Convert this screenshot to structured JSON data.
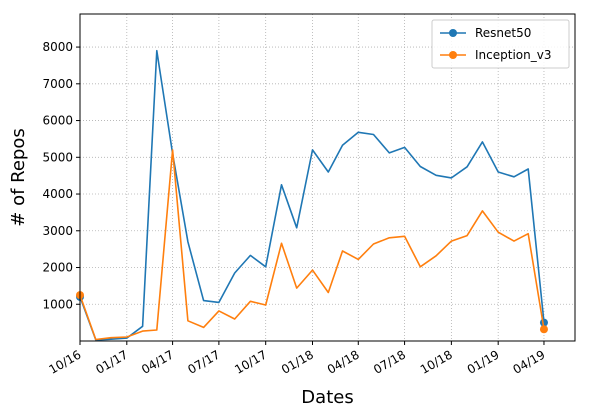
{
  "chart_data": {
    "type": "line",
    "title": "",
    "xlabel": "Dates",
    "ylabel": "# of Repos",
    "x_ticks": [
      "10/16",
      "01/17",
      "04/17",
      "07/17",
      "10/17",
      "01/18",
      "04/18",
      "07/18",
      "10/18",
      "01/19",
      "04/19"
    ],
    "y_ticks": [
      "1000",
      "2000",
      "3000",
      "4000",
      "5000",
      "6000",
      "7000",
      "8000"
    ],
    "ylim": [
      0,
      8900
    ],
    "xlim": [
      "2016-10-01",
      "2019-06-01"
    ],
    "grid": true,
    "legend_position": "top-right",
    "series": [
      {
        "name": "Resnet50",
        "color": "#1f77b4",
        "x": [
          "2016-10-01",
          "2016-11-01",
          "2016-12-01",
          "2017-01-01",
          "2017-02-01",
          "2017-03-01",
          "2017-04-01",
          "2017-05-01",
          "2017-06-01",
          "2017-07-01",
          "2017-08-01",
          "2017-09-01",
          "2017-10-01",
          "2017-11-01",
          "2017-12-01",
          "2018-01-01",
          "2018-02-01",
          "2018-03-01",
          "2018-04-01",
          "2018-05-01",
          "2018-06-01",
          "2018-07-01",
          "2018-08-01",
          "2018-09-01",
          "2018-10-01",
          "2018-11-01",
          "2018-12-01",
          "2019-01-01",
          "2019-02-01",
          "2019-03-01",
          "2019-04-01"
        ],
        "y": [
          1200,
          30,
          50,
          80,
          400,
          7900,
          5100,
          2700,
          1100,
          1050,
          1850,
          2330,
          2020,
          4250,
          3080,
          5200,
          4600,
          5330,
          5680,
          5620,
          5120,
          5270,
          4750,
          4510,
          4440,
          4740,
          5420,
          4600,
          4470,
          4680,
          500
        ]
      },
      {
        "name": "Inception_v3",
        "color": "#ff7f0e",
        "x": [
          "2016-10-01",
          "2016-11-01",
          "2016-12-01",
          "2017-01-01",
          "2017-02-01",
          "2017-03-01",
          "2017-04-01",
          "2017-05-01",
          "2017-06-01",
          "2017-07-01",
          "2017-08-01",
          "2017-09-01",
          "2017-10-01",
          "2017-11-01",
          "2017-12-01",
          "2018-01-01",
          "2018-02-01",
          "2018-03-01",
          "2018-04-01",
          "2018-05-01",
          "2018-06-01",
          "2018-07-01",
          "2018-08-01",
          "2018-09-01",
          "2018-10-01",
          "2018-11-01",
          "2018-12-01",
          "2019-01-01",
          "2019-02-01",
          "2019-03-01",
          "2019-04-01"
        ],
        "y": [
          1250,
          40,
          90,
          110,
          270,
          300,
          5200,
          550,
          370,
          820,
          600,
          1080,
          980,
          2660,
          1440,
          1930,
          1320,
          2450,
          2220,
          2640,
          2810,
          2850,
          2020,
          2320,
          2720,
          2870,
          3540,
          2960,
          2720,
          2920,
          320
        ]
      }
    ]
  }
}
